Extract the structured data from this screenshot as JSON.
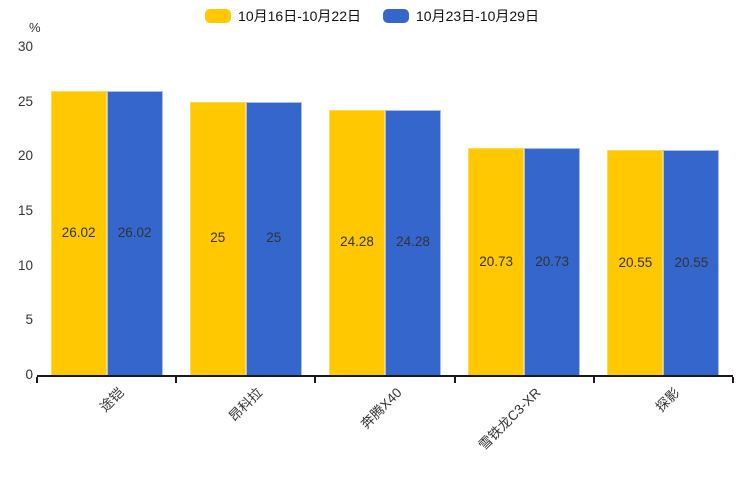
{
  "chart_data": {
    "type": "bar",
    "title": "",
    "unit_label": "%",
    "categories": [
      "途铠",
      "昂科拉",
      "奔腾X40",
      "雪铁龙C3-XR",
      "探影"
    ],
    "series": [
      {
        "name": "10月16日-10月22日",
        "color": "#FFC800",
        "border_color": "#FFD957",
        "values": [
          26.02,
          25,
          24.28,
          20.73,
          20.55
        ]
      },
      {
        "name": "10月23日-10月29日",
        "color": "#3466CC",
        "border_color": "#A9BCEA",
        "values": [
          26.02,
          25,
          24.28,
          20.73,
          20.55
        ]
      }
    ],
    "value_labels": [
      "26.02",
      "25",
      "24.28",
      "20.73",
      "20.55"
    ],
    "ylim": [
      0,
      30
    ],
    "yticks": [
      0,
      5,
      10,
      15,
      20,
      25,
      30
    ],
    "grid": false,
    "legend_position": "top",
    "value_label_position": "inside-center",
    "xlabel_rotation_deg": -45
  }
}
